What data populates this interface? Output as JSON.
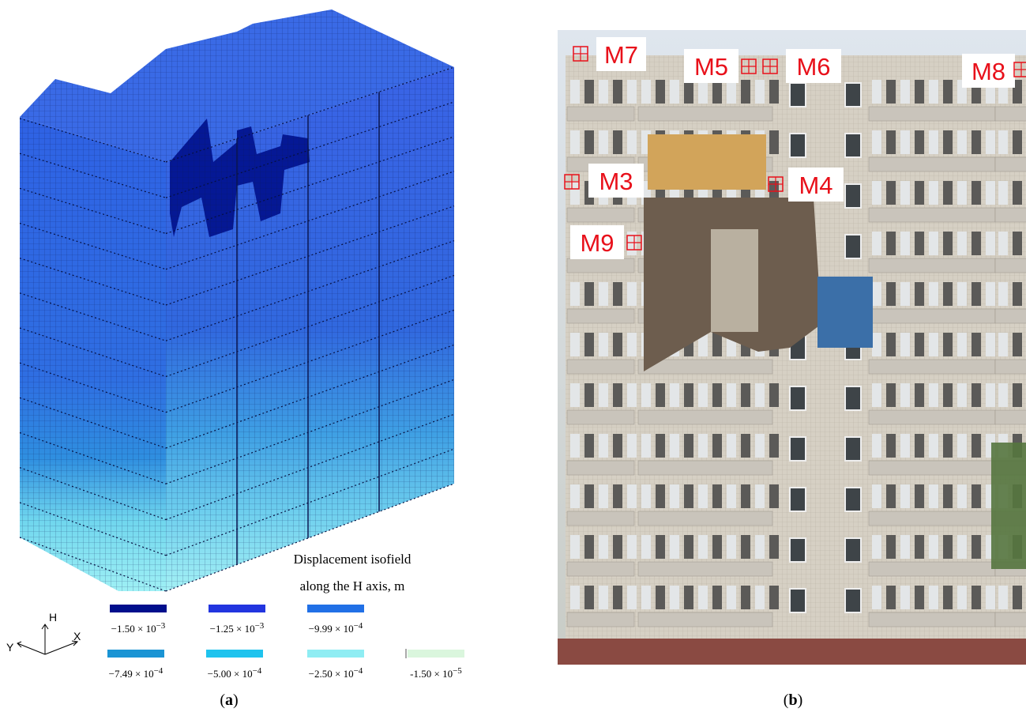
{
  "panel_a": {
    "legend": {
      "title": [
        "Displacement isofield",
        "along the H axis, m"
      ],
      "items": [
        {
          "color": "#000f8c",
          "mantissa": "−1.50 × 10",
          "exponent": "−3"
        },
        {
          "color": "#2235df",
          "mantissa": "−1.25 × 10",
          "exponent": "−3"
        },
        {
          "color": "#2170e6",
          "mantissa": "−9.99 × 10",
          "exponent": "−4"
        },
        {
          "color": "#1a94d4",
          "mantissa": "−7.49 × 10",
          "exponent": "−4"
        },
        {
          "color": "#1fc3ee",
          "mantissa": "−5.00 × 10",
          "exponent": "−4"
        },
        {
          "color": "#8fedf3",
          "mantissa": "−2.50 × 10",
          "exponent": "−4"
        },
        {
          "color": "#daf6dd",
          "mantissa": "-1.50 × 10",
          "exponent": "−5"
        }
      ]
    },
    "axes": {
      "h": "H",
      "x": "X",
      "y": "Y"
    },
    "caption": {
      "prefix": "(",
      "label": "a",
      "suffix": ")"
    }
  },
  "panel_b": {
    "markers": [
      {
        "label": "M7"
      },
      {
        "label": "M5"
      },
      {
        "label": "M6"
      },
      {
        "label": "M8"
      },
      {
        "label": "M3"
      },
      {
        "label": "M4"
      },
      {
        "label": "M9"
      }
    ],
    "caption": {
      "prefix": "(",
      "label": "b",
      "suffix": ")"
    }
  }
}
